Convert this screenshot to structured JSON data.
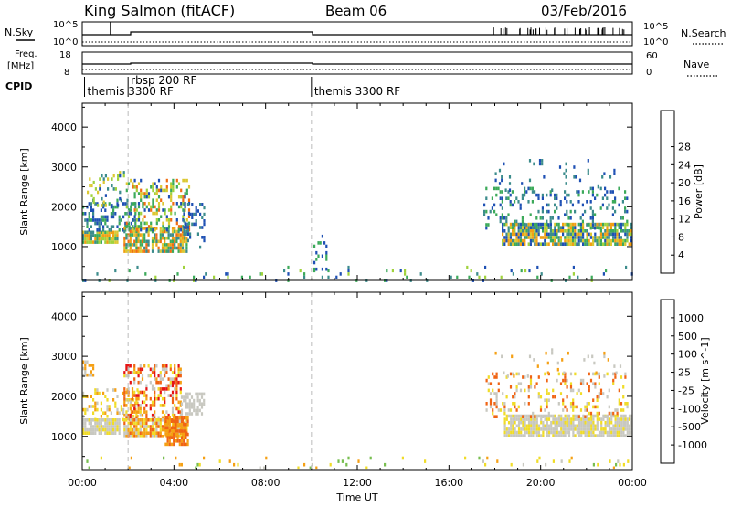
{
  "header": {
    "station": "King Salmon (fitACF)",
    "beam": "Beam 06",
    "date": "03/Feb/2016"
  },
  "top_panel": {
    "nsky_label": "N.Sky",
    "nsky_top": "10^5",
    "nsky_bottom": "10^0",
    "freq_label_1": "Freq.",
    "freq_label_2": "[MHz]",
    "freq_top": "18",
    "freq_bottom": "8",
    "right_top_1": "10^5",
    "right_top_2": "10^0",
    "right_freq_top": "60",
    "right_freq_bottom": "0",
    "nsearch_label": "N.Search",
    "nave_label": "Nave",
    "cpid_label": "CPID",
    "cpid_segments": [
      {
        "label": "themis 3300 RF",
        "start_hour": 0.1
      },
      {
        "label": "rbsp 200 RF",
        "start_hour": 2.0
      },
      {
        "label": "themis 3300 RF",
        "start_hour": 10.0
      }
    ]
  },
  "chart_data": [
    {
      "type": "heatmap",
      "name": "power",
      "ylabel": "Slant Range [km]",
      "xlabel": "",
      "xlim": [
        0,
        24
      ],
      "ylim": [
        150,
        4600
      ],
      "yticks": [
        1000,
        2000,
        3000,
        4000
      ],
      "colorbar": {
        "label": "Power [dB]",
        "ticks": [
          "4",
          "8",
          "12",
          "16",
          "20",
          "24",
          "28"
        ],
        "colors": [
          "#0a28ff",
          "#1e50b4",
          "#3c8c8c",
          "#3caa5a",
          "#a0d23c",
          "#f0e128",
          "#f5aa14",
          "#f06e14",
          "#dc2814"
        ]
      },
      "regions": [
        {
          "x0": 0.0,
          "x1": 1.5,
          "y0": 1100,
          "y1": 1400,
          "values": [
            "#dcc832",
            "#3caa5a",
            "#f0a014",
            "#3c8c8c",
            "#a0d23c"
          ],
          "density": 0.9
        },
        {
          "x0": 0.0,
          "x1": 2.3,
          "y0": 1400,
          "y1": 2200,
          "values": [
            "#1e50b4",
            "#3c8c8c",
            "#3caa5a"
          ],
          "density": 0.35
        },
        {
          "x0": 0.2,
          "x1": 1.8,
          "y0": 2000,
          "y1": 2900,
          "values": [
            "#1e50b4",
            "#3c8c8c",
            "#a0d23c",
            "#dcc832"
          ],
          "density": 0.15
        },
        {
          "x0": 1.8,
          "x1": 4.6,
          "y0": 900,
          "y1": 1500,
          "values": [
            "#f0a014",
            "#dcc832",
            "#3caa5a",
            "#f06e14",
            "#3c8c8c"
          ],
          "density": 0.75
        },
        {
          "x0": 1.9,
          "x1": 4.7,
          "y0": 1400,
          "y1": 2700,
          "values": [
            "#dcc832",
            "#3caa5a",
            "#f06e14",
            "#a0d23c",
            "#1e50b4"
          ],
          "density": 0.35
        },
        {
          "x0": 4.4,
          "x1": 5.3,
          "y0": 1000,
          "y1": 2100,
          "values": [
            "#1e50b4",
            "#3c8c8c"
          ],
          "density": 0.3
        },
        {
          "x0": 0.0,
          "x1": 24.0,
          "y0": 180,
          "y1": 520,
          "values": [
            "#1e50b4",
            "#3c8c8c",
            "#3caa5a",
            "#a0d23c"
          ],
          "density": 0.06
        },
        {
          "x0": 10.0,
          "x1": 10.7,
          "y0": 400,
          "y1": 1300,
          "values": [
            "#1e50b4",
            "#3caa5a"
          ],
          "density": 0.15
        },
        {
          "x0": 18.3,
          "x1": 24.0,
          "y0": 1050,
          "y1": 1600,
          "values": [
            "#1e50b4",
            "#3c8c8c",
            "#3caa5a",
            "#a0d23c",
            "#dcc832",
            "#f0a014"
          ],
          "density": 0.8
        },
        {
          "x0": 17.5,
          "x1": 23.8,
          "y0": 1500,
          "y1": 2500,
          "values": [
            "#1e50b4",
            "#3c8c8c",
            "#3caa5a"
          ],
          "density": 0.2
        },
        {
          "x0": 18.0,
          "x1": 23.5,
          "y0": 2400,
          "y1": 3200,
          "values": [
            "#1e50b4",
            "#3c8c8c"
          ],
          "density": 0.06
        }
      ]
    },
    {
      "type": "heatmap",
      "name": "velocity",
      "ylabel": "Slant Range [km]",
      "xlabel": "Time UT",
      "xlim": [
        0,
        24
      ],
      "ylim": [
        150,
        4600
      ],
      "yticks": [
        1000,
        2000,
        3000,
        4000
      ],
      "xticks": [
        "00:00",
        "04:00",
        "08:00",
        "12:00",
        "16:00",
        "20:00",
        "00:00"
      ],
      "colorbar": {
        "label": "Velocity [m s^-1]",
        "ticks": [
          "1000",
          "500",
          "100",
          "25",
          "-25",
          "-100",
          "-500",
          "-1000"
        ],
        "colors": [
          "#1e3cb4",
          "#2864c8",
          "#3c8c8c",
          "#78be50",
          "#c8c8c0",
          "#f0dc28",
          "#f5a014",
          "#f06414",
          "#e61414"
        ]
      },
      "regions": [
        {
          "x0": 0.0,
          "x1": 1.6,
          "y0": 1050,
          "y1": 1450,
          "values": [
            "#c8c8c0",
            "#c8c8c0",
            "#c8c8c0",
            "#f0dc28"
          ],
          "density": 0.9
        },
        {
          "x0": 0.0,
          "x1": 0.5,
          "y0": 2500,
          "y1": 2900,
          "values": [
            "#c8c8c0",
            "#f5a014"
          ],
          "density": 0.5
        },
        {
          "x0": 0.0,
          "x1": 2.4,
          "y0": 1450,
          "y1": 2200,
          "values": [
            "#c8c8c0",
            "#f0dc28",
            "#f5a014"
          ],
          "density": 0.25
        },
        {
          "x0": 1.8,
          "x1": 4.3,
          "y0": 1450,
          "y1": 2800,
          "values": [
            "#e61414",
            "#f06414",
            "#f5a014",
            "#c8c8c0",
            "#f0dc28"
          ],
          "density": 0.45
        },
        {
          "x0": 1.8,
          "x1": 4.6,
          "y0": 1000,
          "y1": 1450,
          "values": [
            "#c8c8c0",
            "#f5a014",
            "#f06414",
            "#f0dc28"
          ],
          "density": 0.8
        },
        {
          "x0": 3.6,
          "x1": 4.6,
          "y0": 800,
          "y1": 1500,
          "values": [
            "#f06414",
            "#f5a014"
          ],
          "density": 0.8
        },
        {
          "x0": 4.3,
          "x1": 5.3,
          "y0": 1600,
          "y1": 2100,
          "values": [
            "#c8c8c0"
          ],
          "density": 0.5
        },
        {
          "x0": 0.0,
          "x1": 24.0,
          "y0": 180,
          "y1": 500,
          "values": [
            "#78be50",
            "#f0dc28",
            "#c8c8c0",
            "#f5a014"
          ],
          "density": 0.05
        },
        {
          "x0": 18.4,
          "x1": 24.0,
          "y0": 1000,
          "y1": 1550,
          "values": [
            "#c8c8c0",
            "#c8c8c0",
            "#c8c8c0",
            "#f0dc28"
          ],
          "density": 0.85
        },
        {
          "x0": 17.6,
          "x1": 23.8,
          "y0": 1500,
          "y1": 2600,
          "values": [
            "#c8c8c0",
            "#f0dc28",
            "#f06414"
          ],
          "density": 0.2
        },
        {
          "x0": 18.0,
          "x1": 23.5,
          "y0": 2500,
          "y1": 3200,
          "values": [
            "#c8c8c0",
            "#f5a014"
          ],
          "density": 0.05
        }
      ]
    }
  ]
}
